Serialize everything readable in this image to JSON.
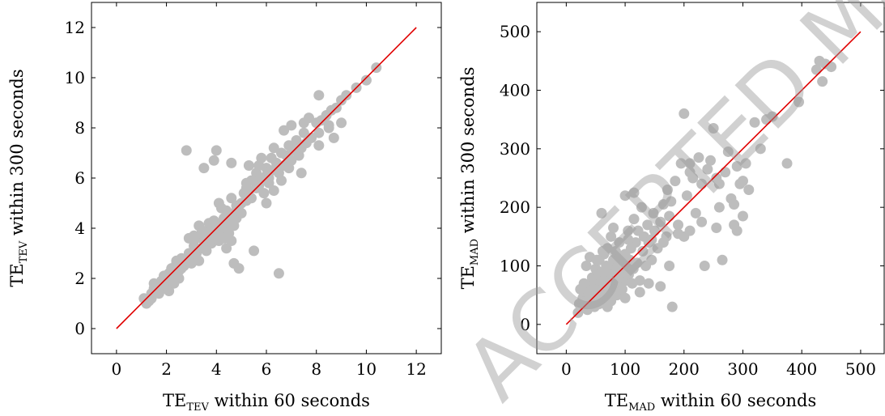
{
  "watermark": "ACCEPTED MANUSCRIPT",
  "colors": {
    "points": "#bdbdbd",
    "diagonal": "#e00000",
    "frame": "#000000"
  },
  "chart_data": [
    {
      "type": "scatter",
      "xlabel": {
        "main": "TE",
        "sub": "TEV",
        "rest": " within 60 seconds"
      },
      "ylabel": {
        "main": "TE",
        "sub": "TEV",
        "rest": " within 300 seconds"
      },
      "xlim": [
        -1,
        13
      ],
      "ylim": [
        -1,
        13
      ],
      "xticks": [
        0,
        2,
        4,
        6,
        8,
        10,
        12
      ],
      "yticks": [
        0,
        2,
        4,
        6,
        8,
        10,
        12
      ],
      "diagonal": [
        [
          0,
          0
        ],
        [
          12,
          12
        ]
      ],
      "grid": false,
      "points": [
        [
          1.1,
          1.2
        ],
        [
          1.2,
          1.0
        ],
        [
          1.3,
          1.1
        ],
        [
          1.4,
          1.4
        ],
        [
          1.5,
          1.6
        ],
        [
          1.5,
          1.8
        ],
        [
          1.6,
          1.5
        ],
        [
          1.7,
          1.7
        ],
        [
          1.8,
          1.9
        ],
        [
          1.9,
          1.6
        ],
        [
          2.0,
          2.0
        ],
        [
          2.0,
          1.7
        ],
        [
          2.1,
          2.2
        ],
        [
          2.1,
          1.5
        ],
        [
          2.2,
          1.9
        ],
        [
          2.2,
          2.4
        ],
        [
          2.3,
          2.1
        ],
        [
          2.4,
          2.6
        ],
        [
          2.5,
          2.3
        ],
        [
          2.5,
          2.0
        ],
        [
          2.6,
          2.8
        ],
        [
          2.7,
          2.5
        ],
        [
          2.8,
          2.6
        ],
        [
          2.9,
          3.0
        ],
        [
          2.9,
          2.7
        ],
        [
          3.0,
          2.9
        ],
        [
          3.1,
          3.3
        ],
        [
          3.2,
          3.0
        ],
        [
          3.2,
          3.6
        ],
        [
          3.3,
          4.1
        ],
        [
          3.4,
          3.2
        ],
        [
          3.4,
          3.8
        ],
        [
          3.5,
          3.5
        ],
        [
          3.6,
          3.9
        ],
        [
          3.6,
          3.3
        ],
        [
          3.7,
          3.7
        ],
        [
          3.7,
          4.2
        ],
        [
          3.8,
          3.4
        ],
        [
          3.8,
          3.9
        ],
        [
          3.9,
          4.3
        ],
        [
          3.9,
          3.6
        ],
        [
          4.0,
          3.8
        ],
        [
          4.0,
          4.0
        ],
        [
          4.1,
          3.5
        ],
        [
          4.1,
          4.1
        ],
        [
          4.2,
          3.7
        ],
        [
          4.2,
          3.9
        ],
        [
          4.3,
          4.4
        ],
        [
          4.3,
          3.6
        ],
        [
          4.4,
          4.0
        ],
        [
          4.4,
          4.7
        ],
        [
          4.5,
          4.2
        ],
        [
          4.5,
          3.8
        ],
        [
          4.6,
          4.5
        ],
        [
          4.7,
          4.1
        ],
        [
          4.7,
          4.6
        ],
        [
          4.8,
          4.4
        ],
        [
          4.9,
          4.9
        ],
        [
          5.0,
          5.0
        ],
        [
          5.0,
          4.6
        ],
        [
          5.1,
          5.4
        ],
        [
          5.2,
          5.1
        ],
        [
          5.2,
          5.8
        ],
        [
          5.3,
          5.5
        ],
        [
          5.4,
          5.2
        ],
        [
          5.5,
          5.9
        ],
        [
          5.6,
          5.6
        ],
        [
          5.6,
          6.2
        ],
        [
          5.7,
          5.7
        ],
        [
          5.8,
          6.0
        ],
        [
          5.9,
          5.4
        ],
        [
          6.0,
          6.1
        ],
        [
          6.0,
          6.4
        ],
        [
          6.1,
          5.8
        ],
        [
          6.2,
          6.3
        ],
        [
          6.3,
          5.5
        ],
        [
          6.4,
          6.6
        ],
        [
          6.5,
          6.2
        ],
        [
          6.6,
          7.0
        ],
        [
          6.7,
          6.5
        ],
        [
          6.8,
          6.9
        ],
        [
          6.9,
          7.3
        ],
        [
          7.0,
          6.7
        ],
        [
          7.1,
          7.1
        ],
        [
          7.2,
          7.5
        ],
        [
          7.3,
          6.9
        ],
        [
          7.4,
          7.2
        ],
        [
          7.5,
          7.8
        ],
        [
          7.6,
          7.4
        ],
        [
          7.8,
          7.6
        ],
        [
          8.0,
          8.2
        ],
        [
          8.1,
          7.8
        ],
        [
          8.2,
          8.3
        ],
        [
          8.4,
          8.5
        ],
        [
          8.5,
          8.0
        ],
        [
          8.6,
          8.7
        ],
        [
          8.8,
          8.8
        ],
        [
          9.0,
          9.1
        ],
        [
          9.2,
          9.3
        ],
        [
          9.6,
          9.6
        ],
        [
          10.0,
          9.9
        ],
        [
          10.4,
          10.4
        ],
        [
          8.1,
          9.3
        ],
        [
          7.5,
          8.2
        ],
        [
          6.7,
          7.9
        ],
        [
          6.2,
          6.8
        ],
        [
          5.7,
          6.5
        ],
        [
          5.2,
          5.6
        ],
        [
          4.6,
          5.2
        ],
        [
          4.1,
          5.0
        ],
        [
          3.9,
          6.7
        ],
        [
          4.0,
          7.1
        ],
        [
          2.8,
          7.1
        ],
        [
          3.5,
          6.4
        ],
        [
          4.6,
          6.6
        ],
        [
          5.5,
          3.1
        ],
        [
          6.5,
          2.2
        ],
        [
          4.7,
          2.6
        ],
        [
          4.9,
          2.4
        ],
        [
          6.0,
          5.0
        ],
        [
          6.6,
          5.9
        ],
        [
          7.4,
          6.2
        ],
        [
          8.1,
          7.3
        ],
        [
          2.9,
          3.6
        ],
        [
          3.1,
          3.7
        ],
        [
          3.3,
          2.7
        ],
        [
          3.5,
          3.3
        ],
        [
          4.4,
          3.2
        ],
        [
          4.6,
          3.5
        ],
        [
          2.4,
          2.7
        ],
        [
          5.3,
          6.5
        ],
        [
          5.8,
          6.8
        ],
        [
          6.3,
          7.2
        ],
        [
          7.0,
          8.1
        ],
        [
          7.7,
          8.4
        ],
        [
          8.5,
          8.1
        ],
        [
          9.0,
          8.2
        ],
        [
          8.7,
          7.6
        ],
        [
          6.9,
          6.4
        ],
        [
          6.1,
          6.0
        ],
        [
          5.4,
          5.9
        ],
        [
          4.8,
          4.9
        ],
        [
          4.2,
          4.8
        ],
        [
          3.6,
          3.1
        ],
        [
          3.0,
          2.6
        ],
        [
          2.6,
          2.4
        ],
        [
          2.3,
          1.8
        ],
        [
          1.9,
          2.1
        ],
        [
          1.7,
          1.4
        ],
        [
          1.4,
          1.2
        ]
      ]
    },
    {
      "type": "scatter",
      "xlabel": {
        "main": "TE",
        "sub": "MAD",
        "rest": " within 60 seconds"
      },
      "ylabel": {
        "main": "TE",
        "sub": "MAD",
        "rest": " within 300 seconds"
      },
      "xlim": [
        -50,
        540
      ],
      "ylim": [
        -50,
        550
      ],
      "xticks": [
        0,
        100,
        200,
        300,
        400,
        500
      ],
      "yticks": [
        0,
        100,
        200,
        300,
        400,
        500
      ],
      "diagonal": [
        [
          0,
          0
        ],
        [
          500,
          500
        ]
      ],
      "grid": false,
      "points": [
        [
          20,
          20
        ],
        [
          22,
          35
        ],
        [
          25,
          28
        ],
        [
          28,
          45
        ],
        [
          30,
          30
        ],
        [
          32,
          55
        ],
        [
          35,
          40
        ],
        [
          36,
          25
        ],
        [
          38,
          65
        ],
        [
          40,
          50
        ],
        [
          42,
          35
        ],
        [
          44,
          80
        ],
        [
          45,
          60
        ],
        [
          46,
          45
        ],
        [
          48,
          30
        ],
        [
          50,
          70
        ],
        [
          50,
          95
        ],
        [
          52,
          55
        ],
        [
          54,
          40
        ],
        [
          55,
          85
        ],
        [
          56,
          110
        ],
        [
          58,
          65
        ],
        [
          60,
          50
        ],
        [
          60,
          75
        ],
        [
          62,
          90
        ],
        [
          64,
          120
        ],
        [
          65,
          60
        ],
        [
          66,
          45
        ],
        [
          68,
          100
        ],
        [
          70,
          80
        ],
        [
          70,
          130
        ],
        [
          72,
          55
        ],
        [
          74,
          70
        ],
        [
          75,
          95
        ],
        [
          76,
          150
        ],
        [
          78,
          85
        ],
        [
          80,
          60
        ],
        [
          80,
          110
        ],
        [
          82,
          75
        ],
        [
          84,
          125
        ],
        [
          85,
          90
        ],
        [
          86,
          50
        ],
        [
          88,
          100
        ],
        [
          90,
          70
        ],
        [
          90,
          140
        ],
        [
          92,
          115
        ],
        [
          94,
          80
        ],
        [
          95,
          60
        ],
        [
          96,
          105
        ],
        [
          98,
          90
        ],
        [
          100,
          120
        ],
        [
          100,
          45
        ],
        [
          102,
          75
        ],
        [
          104,
          100
        ],
        [
          105,
          160
        ],
        [
          106,
          85
        ],
        [
          108,
          110
        ],
        [
          110,
          130
        ],
        [
          112,
          70
        ],
        [
          114,
          95
        ],
        [
          115,
          180
        ],
        [
          118,
          140
        ],
        [
          120,
          105
        ],
        [
          122,
          160
        ],
        [
          125,
          75
        ],
        [
          128,
          200
        ],
        [
          130,
          125
        ],
        [
          132,
          150
        ],
        [
          135,
          100
        ],
        [
          138,
          170
        ],
        [
          140,
          140
        ],
        [
          145,
          110
        ],
        [
          148,
          190
        ],
        [
          150,
          160
        ],
        [
          155,
          130
        ],
        [
          160,
          175
        ],
        [
          165,
          205
        ],
        [
          170,
          150
        ],
        [
          172,
          230
        ],
        [
          175,
          185
        ],
        [
          178,
          210
        ],
        [
          180,
          30
        ],
        [
          185,
          245
        ],
        [
          190,
          170
        ],
        [
          195,
          275
        ],
        [
          200,
          150
        ],
        [
          200,
          360
        ],
        [
          205,
          220
        ],
        [
          210,
          260
        ],
        [
          215,
          250
        ],
        [
          220,
          190
        ],
        [
          225,
          285
        ],
        [
          230,
          240
        ],
        [
          235,
          100
        ],
        [
          240,
          265
        ],
        [
          245,
          280
        ],
        [
          250,
          335
        ],
        [
          255,
          165
        ],
        [
          260,
          240
        ],
        [
          265,
          110
        ],
        [
          270,
          260
        ],
        [
          275,
          295
        ],
        [
          280,
          215
        ],
        [
          285,
          170
        ],
        [
          290,
          270
        ],
        [
          295,
          240
        ],
        [
          300,
          245
        ],
        [
          305,
          275
        ],
        [
          310,
          230
        ],
        [
          320,
          345
        ],
        [
          330,
          300
        ],
        [
          340,
          350
        ],
        [
          350,
          355
        ],
        [
          375,
          275
        ],
        [
          395,
          380
        ],
        [
          425,
          435
        ],
        [
          430,
          450
        ],
        [
          435,
          415
        ],
        [
          440,
          445
        ],
        [
          450,
          440
        ],
        [
          60,
          190
        ],
        [
          80,
          165
        ],
        [
          100,
          220
        ],
        [
          105,
          145
        ],
        [
          115,
          225
        ],
        [
          125,
          55
        ],
        [
          145,
          145
        ],
        [
          160,
          65
        ],
        [
          175,
          100
        ],
        [
          210,
          160
        ],
        [
          230,
          175
        ],
        [
          255,
          250
        ],
        [
          260,
          200
        ],
        [
          285,
          205
        ],
        [
          290,
          160
        ],
        [
          300,
          185
        ],
        [
          210,
          275
        ],
        [
          190,
          155
        ],
        [
          165,
          140
        ],
        [
          140,
          70
        ],
        [
          24,
          60
        ],
        [
          30,
          70
        ],
        [
          34,
          100
        ],
        [
          40,
          115
        ],
        [
          46,
          40
        ],
        [
          52,
          110
        ],
        [
          56,
          35
        ],
        [
          62,
          125
        ],
        [
          70,
          30
        ],
        [
          76,
          40
        ]
      ]
    }
  ]
}
